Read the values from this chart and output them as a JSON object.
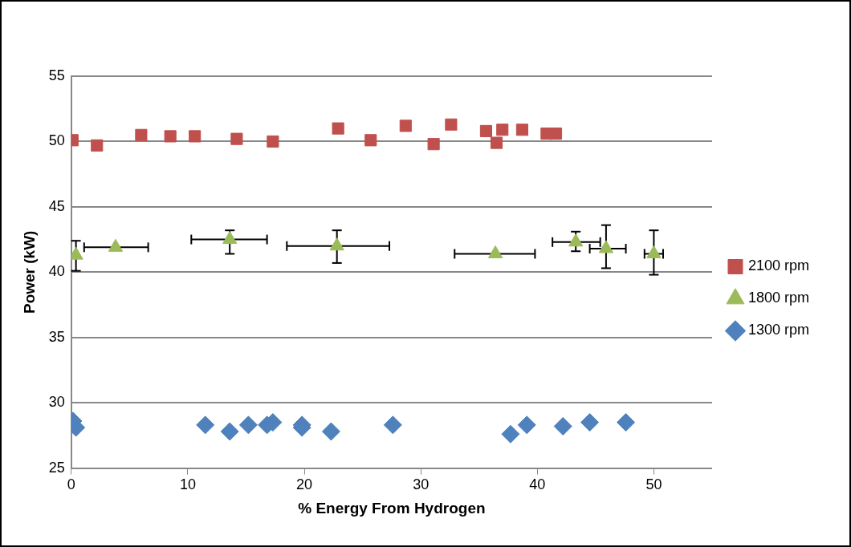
{
  "chart_data": {
    "type": "scatter",
    "xlabel": "% Energy From Hydrogen",
    "ylabel": "Power (kW)",
    "xlim": [
      0,
      55
    ],
    "xticks": [
      0,
      10,
      20,
      30,
      40,
      50
    ],
    "ylim": [
      25,
      55
    ],
    "yticks": [
      25,
      30,
      35,
      40,
      45,
      50,
      55
    ],
    "grid": "y",
    "legend": "right",
    "series": [
      {
        "name": "2100 rpm",
        "color": "#c0504d",
        "marker": "square",
        "x": [
          0.1,
          2.2,
          6.0,
          8.5,
          10.6,
          14.2,
          17.3,
          22.9,
          25.7,
          28.7,
          31.1,
          32.6,
          35.6,
          36.5,
          37.0,
          38.7,
          40.8,
          41.6
        ],
        "values": [
          50.1,
          49.7,
          50.5,
          50.4,
          50.4,
          50.2,
          50.0,
          51.0,
          50.1,
          51.2,
          49.8,
          51.3,
          50.8,
          49.9,
          50.9,
          50.9,
          50.6,
          50.6
        ]
      },
      {
        "name": "1800 rpm",
        "color": "#9bbb59",
        "marker": "triangle",
        "x": [
          0.4,
          3.8,
          13.6,
          22.8,
          36.4,
          43.3,
          45.9,
          50.0
        ],
        "values": [
          41.3,
          41.9,
          42.5,
          42.0,
          41.4,
          42.3,
          41.8,
          41.4
        ],
        "errors": [
          [
            40.1,
            42.4
          ],
          null,
          [
            41.4,
            43.2
          ],
          [
            40.7,
            43.2
          ],
          null,
          [
            41.6,
            43.1
          ],
          [
            40.3,
            43.6
          ],
          [
            39.8,
            43.2
          ]
        ],
        "xerrors": [
          null,
          [
            1.1,
            6.6
          ],
          [
            10.3,
            16.8
          ],
          [
            18.5,
            27.3
          ],
          [
            32.9,
            39.8
          ],
          [
            41.3,
            45.4
          ],
          [
            44.5,
            47.6
          ],
          [
            49.2,
            50.8
          ]
        ]
      },
      {
        "name": "1300 rpm",
        "color": "#4f81bd",
        "marker": "diamond",
        "x": [
          0.15,
          0.4,
          11.5,
          13.6,
          15.2,
          16.8,
          17.3,
          19.8,
          19.8,
          22.3,
          27.6,
          37.7,
          39.1,
          42.2,
          44.5,
          47.6
        ],
        "values": [
          28.6,
          28.1,
          28.3,
          27.8,
          28.3,
          28.3,
          28.5,
          28.3,
          28.1,
          27.8,
          28.3,
          27.6,
          28.3,
          28.2,
          28.5,
          28.5
        ]
      }
    ]
  }
}
